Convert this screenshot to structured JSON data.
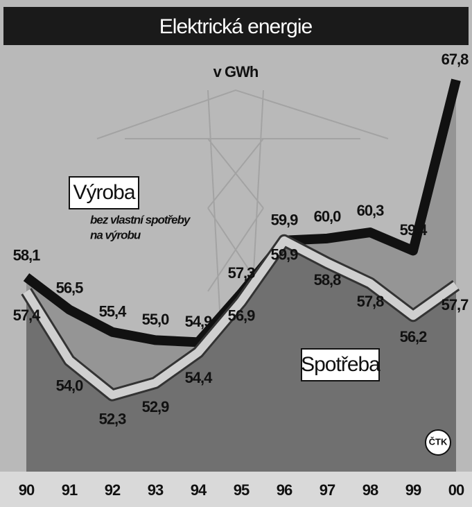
{
  "chart_data": {
    "type": "line",
    "title": "Elektrická energie",
    "subtitle": "v GWh",
    "annotation": [
      "bez vlastní spotřeby",
      "na výrobu"
    ],
    "source": "ČTK",
    "categories": [
      "90",
      "91",
      "92",
      "93",
      "94",
      "95",
      "96",
      "97",
      "98",
      "99",
      "00"
    ],
    "series": [
      {
        "name": "Výroba",
        "color": "#111111",
        "values": [
          58.1,
          56.5,
          55.4,
          55.0,
          54.9,
          57.3,
          59.9,
          60.0,
          60.3,
          59.4,
          67.8
        ],
        "value_labels": [
          "58,1",
          "56,5",
          "55,4",
          "55,0",
          "54,9",
          "57,3",
          "59,9",
          "60,0",
          "60,3",
          "59,4",
          "67,8"
        ]
      },
      {
        "name": "Spotřeba",
        "color": "#cfcfcf",
        "values": [
          57.4,
          54.0,
          52.3,
          52.9,
          54.4,
          56.9,
          59.9,
          58.8,
          57.8,
          56.2,
          57.7
        ],
        "value_labels": [
          "57,4",
          "54,0",
          "52,3",
          "52,9",
          "54,4",
          "56,9",
          "59,9",
          "58,8",
          "57,8",
          "56,2",
          "57,7"
        ]
      }
    ],
    "ylim": [
      50,
      69
    ]
  }
}
